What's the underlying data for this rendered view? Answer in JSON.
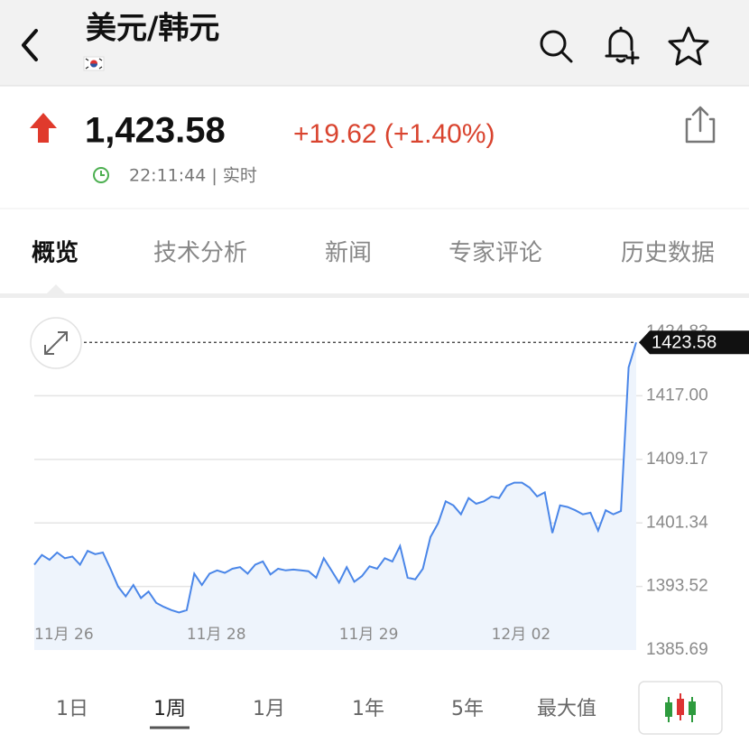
{
  "header": {
    "title": "美元/韩元"
  },
  "quote": {
    "price": "1,423.58",
    "change": "+19.62 (+1.40%)",
    "time": "22:11:44 | 实时"
  },
  "tabs": [
    "概览",
    "技术分析",
    "新闻",
    "专家评论",
    "历史数据"
  ],
  "ranges": [
    "1日",
    "1周",
    "1月",
    "1年",
    "5年",
    "最大值"
  ],
  "chart_data": {
    "type": "area",
    "series": [
      {
        "color": "#4a86e8",
        "values": [
          1396.2,
          1397.4,
          1396.8,
          1397.7,
          1397.0,
          1397.2,
          1396.2,
          1397.9,
          1397.5,
          1397.7,
          1395.7,
          1393.5,
          1392.3,
          1393.7,
          1392.1,
          1392.9,
          1391.5,
          1391.0,
          1390.6,
          1390.3,
          1390.6,
          1395.1,
          1393.7,
          1395.1,
          1395.5,
          1395.2,
          1395.7,
          1395.9,
          1395.1,
          1396.2,
          1396.6,
          1395.0,
          1395.7,
          1395.5,
          1395.6,
          1395.5,
          1395.4,
          1394.6,
          1397.0,
          1395.5,
          1394.0,
          1395.9,
          1394.1,
          1394.8,
          1396.0,
          1395.7,
          1397.0,
          1396.6,
          1398.5,
          1394.6,
          1394.4,
          1395.7,
          1399.6,
          1401.3,
          1404.0,
          1403.5,
          1402.4,
          1404.4,
          1403.7,
          1404.0,
          1404.6,
          1404.4,
          1405.9,
          1406.3,
          1406.3,
          1405.7,
          1404.6,
          1405.1,
          1400.1,
          1403.5,
          1403.3,
          1402.9,
          1402.4,
          1402.6,
          1400.4,
          1402.9,
          1402.4,
          1402.8,
          1420.5,
          1423.58
        ]
      }
    ],
    "xlim": [
      0,
      79
    ],
    "xticks": [
      {
        "value": 0,
        "label": "11月 26"
      },
      {
        "value": 20,
        "label": "11月 28"
      },
      {
        "value": 40,
        "label": "11月 29"
      },
      {
        "value": 60,
        "label": "12月 02"
      }
    ],
    "ylim": [
      1385.69,
      1424.83
    ],
    "yticks": [
      1385.69,
      1393.52,
      1401.34,
      1409.17,
      {
        "value": 1417,
        "label": "1417.00"
      },
      1424.83
    ],
    "grid": true
  }
}
